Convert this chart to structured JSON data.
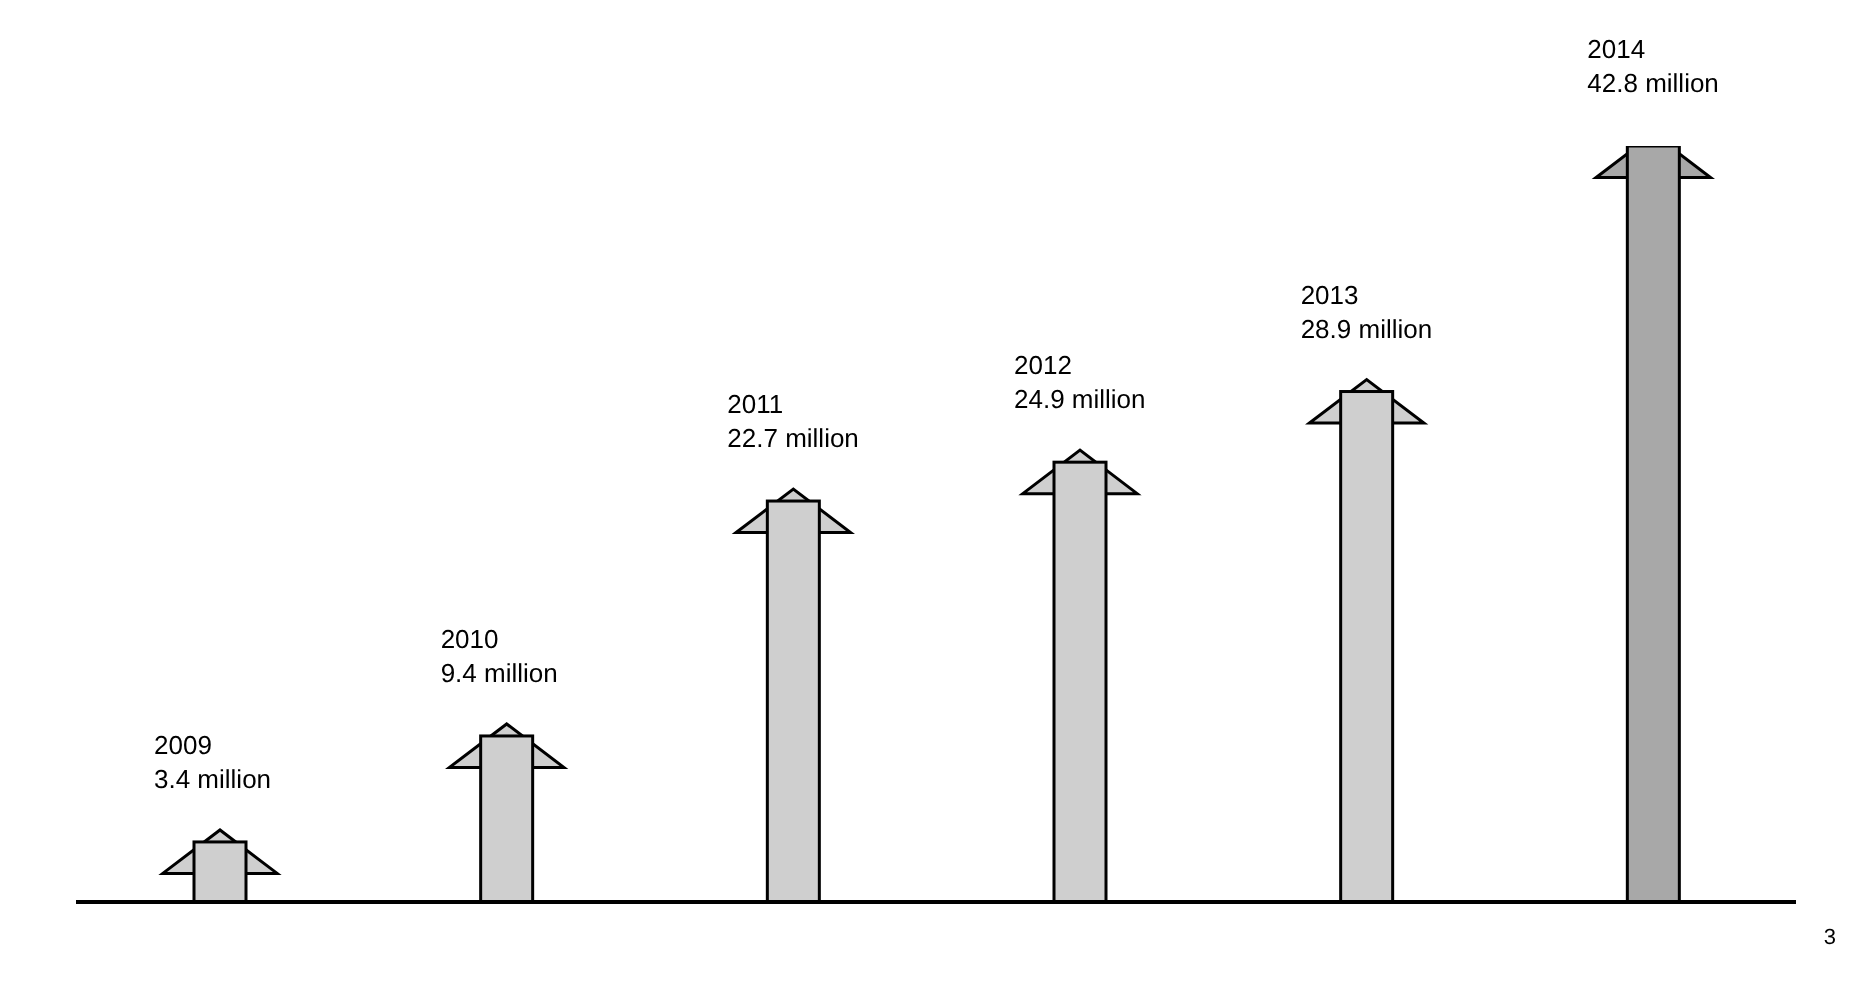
{
  "chart_data": {
    "type": "bar",
    "categories": [
      null,
      null,
      null,
      null,
      null,
      null
    ],
    "values": [
      3.4,
      9.4,
      22.7,
      24.9,
      28.9,
      42.8
    ],
    "value_labels": [
      "3.4 million",
      "9.4 million",
      "22.7 million",
      "24.9 million",
      "28.9 million",
      "42.8 million"
    ],
    "colors": [
      "#cfcfcf",
      "#cfcfcf",
      "#cfcfcf",
      "#cfcfcf",
      "#cfcfcf",
      "#a8a8a8"
    ],
    "annotations": [
      "2009",
      "2010",
      "2011",
      "2012",
      "2013",
      "2014",
      "3"
    ]
  }
}
